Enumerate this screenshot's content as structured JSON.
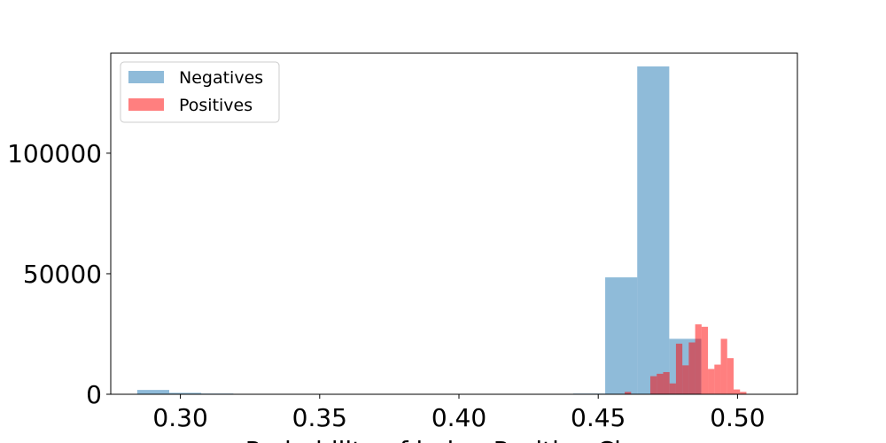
{
  "chart_data": {
    "type": "bar",
    "xlabel": "Probability of being Positive Class",
    "ylabel": "",
    "xlim": [
      0.275,
      0.5215
    ],
    "ylim": [
      0,
      141500
    ],
    "x_ticks": [
      0.3,
      0.35,
      0.4,
      0.45,
      0.5
    ],
    "x_tick_labels": [
      "0.30",
      "0.35",
      "0.40",
      "0.45",
      "0.50"
    ],
    "y_ticks": [
      0,
      50000,
      100000
    ],
    "y_tick_labels": [
      "0",
      "50000",
      "100000"
    ],
    "legend": {
      "placement": "top-left",
      "entries": [
        "Negatives",
        "Positives"
      ]
    },
    "series": [
      {
        "name": "Negatives",
        "color": "#1f77b4",
        "opacity": 0.5,
        "bins": [
          {
            "x0": 0.2845,
            "x1": 0.296,
            "y": 1800
          },
          {
            "x0": 0.296,
            "x1": 0.3075,
            "y": 600
          },
          {
            "x0": 0.3075,
            "x1": 0.319,
            "y": 300
          },
          {
            "x0": 0.441,
            "x1": 0.4525,
            "y": 300
          },
          {
            "x0": 0.4525,
            "x1": 0.464,
            "y": 48500
          },
          {
            "x0": 0.464,
            "x1": 0.4755,
            "y": 136000
          },
          {
            "x0": 0.4755,
            "x1": 0.487,
            "y": 23000
          },
          {
            "x0": 0.487,
            "x1": 0.4985,
            "y": 0
          }
        ]
      },
      {
        "name": "Positives",
        "color": "#ff0000",
        "opacity": 0.5,
        "bins": [
          {
            "x0": 0.4595,
            "x1": 0.4618,
            "y": 1000
          },
          {
            "x0": 0.4687,
            "x1": 0.471,
            "y": 7500
          },
          {
            "x0": 0.471,
            "x1": 0.4733,
            "y": 8500
          },
          {
            "x0": 0.4733,
            "x1": 0.4756,
            "y": 9200
          },
          {
            "x0": 0.4756,
            "x1": 0.4779,
            "y": 4500
          },
          {
            "x0": 0.4779,
            "x1": 0.4802,
            "y": 21000
          },
          {
            "x0": 0.4802,
            "x1": 0.4825,
            "y": 12000
          },
          {
            "x0": 0.4825,
            "x1": 0.4848,
            "y": 21500
          },
          {
            "x0": 0.4848,
            "x1": 0.4871,
            "y": 29000
          },
          {
            "x0": 0.4871,
            "x1": 0.4894,
            "y": 28000
          },
          {
            "x0": 0.4894,
            "x1": 0.4917,
            "y": 10500
          },
          {
            "x0": 0.4917,
            "x1": 0.494,
            "y": 12300
          },
          {
            "x0": 0.494,
            "x1": 0.4963,
            "y": 23000
          },
          {
            "x0": 0.4963,
            "x1": 0.4986,
            "y": 15000
          },
          {
            "x0": 0.4986,
            "x1": 0.5009,
            "y": 2000
          },
          {
            "x0": 0.5009,
            "x1": 0.5032,
            "y": 1000
          }
        ]
      }
    ]
  }
}
